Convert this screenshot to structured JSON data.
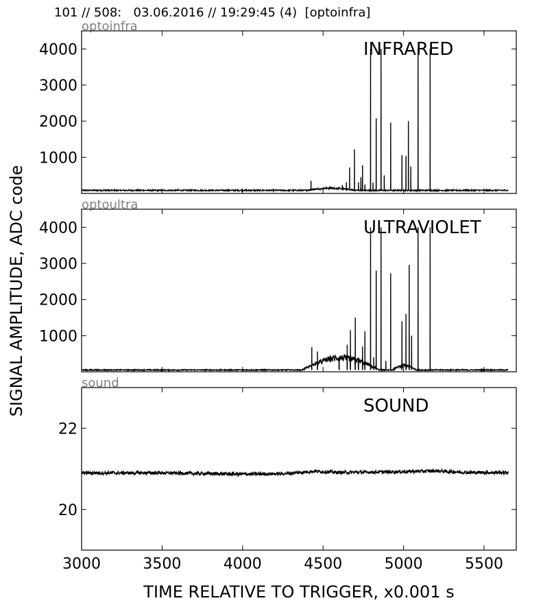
{
  "header": {
    "title": "101 // 508:   03.06.2016 // 19:29:45 (4)  [optoinfra]"
  },
  "ylabel": "SIGNAL AMPLITUDE,  ADC code",
  "xlabel": "TIME RELATIVE TO TRIGGER,   x0.001 s",
  "colors": {
    "trace": "#000000",
    "channel_label": "#808080",
    "axes": "#000000"
  },
  "chart_data": [
    {
      "type": "line",
      "channel": "optoinfra",
      "title": "INFRARED",
      "xlim": [
        3000,
        5700
      ],
      "ylim": [
        0,
        4500
      ],
      "yticks": [
        1000,
        2000,
        3000,
        4000
      ],
      "xticks": [
        3000,
        3500,
        4000,
        4500,
        5000,
        5500
      ],
      "baseline": 85,
      "noise": 18,
      "bumps": [
        {
          "x0": 4400,
          "x1": 4700,
          "amp": 80
        }
      ],
      "spikes": [
        [
          3150,
          120
        ],
        [
          3600,
          110
        ],
        [
          4050,
          105
        ],
        [
          4425,
          350
        ],
        [
          4620,
          230
        ],
        [
          4645,
          310
        ],
        [
          4665,
          720
        ],
        [
          4695,
          1220
        ],
        [
          4720,
          310
        ],
        [
          4735,
          450
        ],
        [
          4745,
          780
        ],
        [
          4760,
          250
        ],
        [
          4795,
          4000
        ],
        [
          4810,
          300
        ],
        [
          4830,
          2080
        ],
        [
          4860,
          4000
        ],
        [
          4880,
          500
        ],
        [
          4920,
          1960
        ],
        [
          4990,
          1060
        ],
        [
          5015,
          1040
        ],
        [
          5030,
          2000
        ],
        [
          5045,
          750
        ],
        [
          5090,
          4000
        ],
        [
          5165,
          4000
        ]
      ],
      "x_end": 5650
    },
    {
      "type": "line",
      "channel": "optoultra",
      "title": "ULTRAVIOLET",
      "xlim": [
        3000,
        5700
      ],
      "ylim": [
        0,
        4500
      ],
      "yticks": [
        1000,
        2000,
        3000,
        4000
      ],
      "xticks": [
        3000,
        3500,
        4000,
        4500,
        5000,
        5500
      ],
      "baseline": 50,
      "noise": 15,
      "bumps": [
        {
          "x0": 4370,
          "x1": 4850,
          "amp": 430
        },
        {
          "x0": 4930,
          "x1": 5080,
          "amp": 150
        }
      ],
      "spikes": [
        [
          4430,
          680
        ],
        [
          4465,
          560
        ],
        [
          4600,
          420
        ],
        [
          4650,
          750
        ],
        [
          4670,
          1150
        ],
        [
          4700,
          1500
        ],
        [
          4720,
          400
        ],
        [
          4745,
          700
        ],
        [
          4760,
          1120
        ],
        [
          4795,
          4000
        ],
        [
          4815,
          400
        ],
        [
          4830,
          2800
        ],
        [
          4860,
          4000
        ],
        [
          4890,
          300
        ],
        [
          4920,
          2730
        ],
        [
          4990,
          1400
        ],
        [
          5015,
          1600
        ],
        [
          5035,
          2960
        ],
        [
          5050,
          1000
        ],
        [
          5090,
          4000
        ],
        [
          5165,
          4000
        ]
      ],
      "x_end": 5650
    },
    {
      "type": "line",
      "channel": "sound",
      "title": "SOUND",
      "xlim": [
        3000,
        5700
      ],
      "ylim": [
        19,
        23
      ],
      "yticks": [
        20,
        22
      ],
      "xticks": [
        3000,
        3500,
        4000,
        4500,
        5000,
        5500
      ],
      "baseline": 20.9,
      "noise": 0.04,
      "wander": [
        [
          3000,
          20.9
        ],
        [
          3500,
          20.9
        ],
        [
          4000,
          20.87
        ],
        [
          4250,
          20.88
        ],
        [
          4450,
          20.94
        ],
        [
          4600,
          20.91
        ],
        [
          5000,
          20.93
        ],
        [
          5200,
          20.95
        ],
        [
          5400,
          20.91
        ],
        [
          5650,
          20.91
        ]
      ],
      "spikes": [],
      "bumps": [],
      "x_end": 5650
    }
  ]
}
